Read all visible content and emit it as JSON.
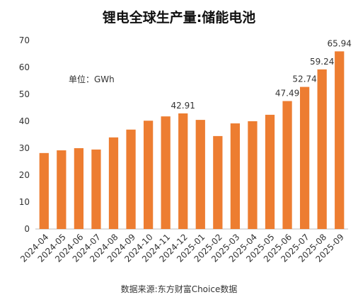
{
  "chart_data": {
    "type": "bar",
    "title": "锂电全球生产量:储能电池",
    "unit_label": "单位：GWh",
    "source": "数据来源:东方财富Choice数据",
    "categories": [
      "2024-04",
      "2024-05",
      "2024-06",
      "2024-07",
      "2024-08",
      "2024-09",
      "2024-10",
      "2024-11",
      "2024-12",
      "2025-01",
      "2025-02",
      "2025-03",
      "2025-04",
      "2025-05",
      "2025-06",
      "2025-07",
      "2025-08",
      "2025-09"
    ],
    "values": [
      28.2,
      29.2,
      30.0,
      29.5,
      34.0,
      36.9,
      40.2,
      41.8,
      42.91,
      40.5,
      34.5,
      39.2,
      40.0,
      42.4,
      47.49,
      52.74,
      59.24,
      65.94
    ],
    "data_labels": [
      {
        "index": 8,
        "text": "42.91"
      },
      {
        "index": 14,
        "text": "47.49"
      },
      {
        "index": 15,
        "text": "52.74"
      },
      {
        "index": 16,
        "text": "59.24"
      },
      {
        "index": 17,
        "text": "65.94"
      }
    ],
    "ylim": [
      0,
      70
    ],
    "yticks": [
      "0",
      "10",
      "20",
      "30",
      "40",
      "50",
      "60",
      "70"
    ],
    "grid": false,
    "bar_color": "#ED7D31"
  }
}
